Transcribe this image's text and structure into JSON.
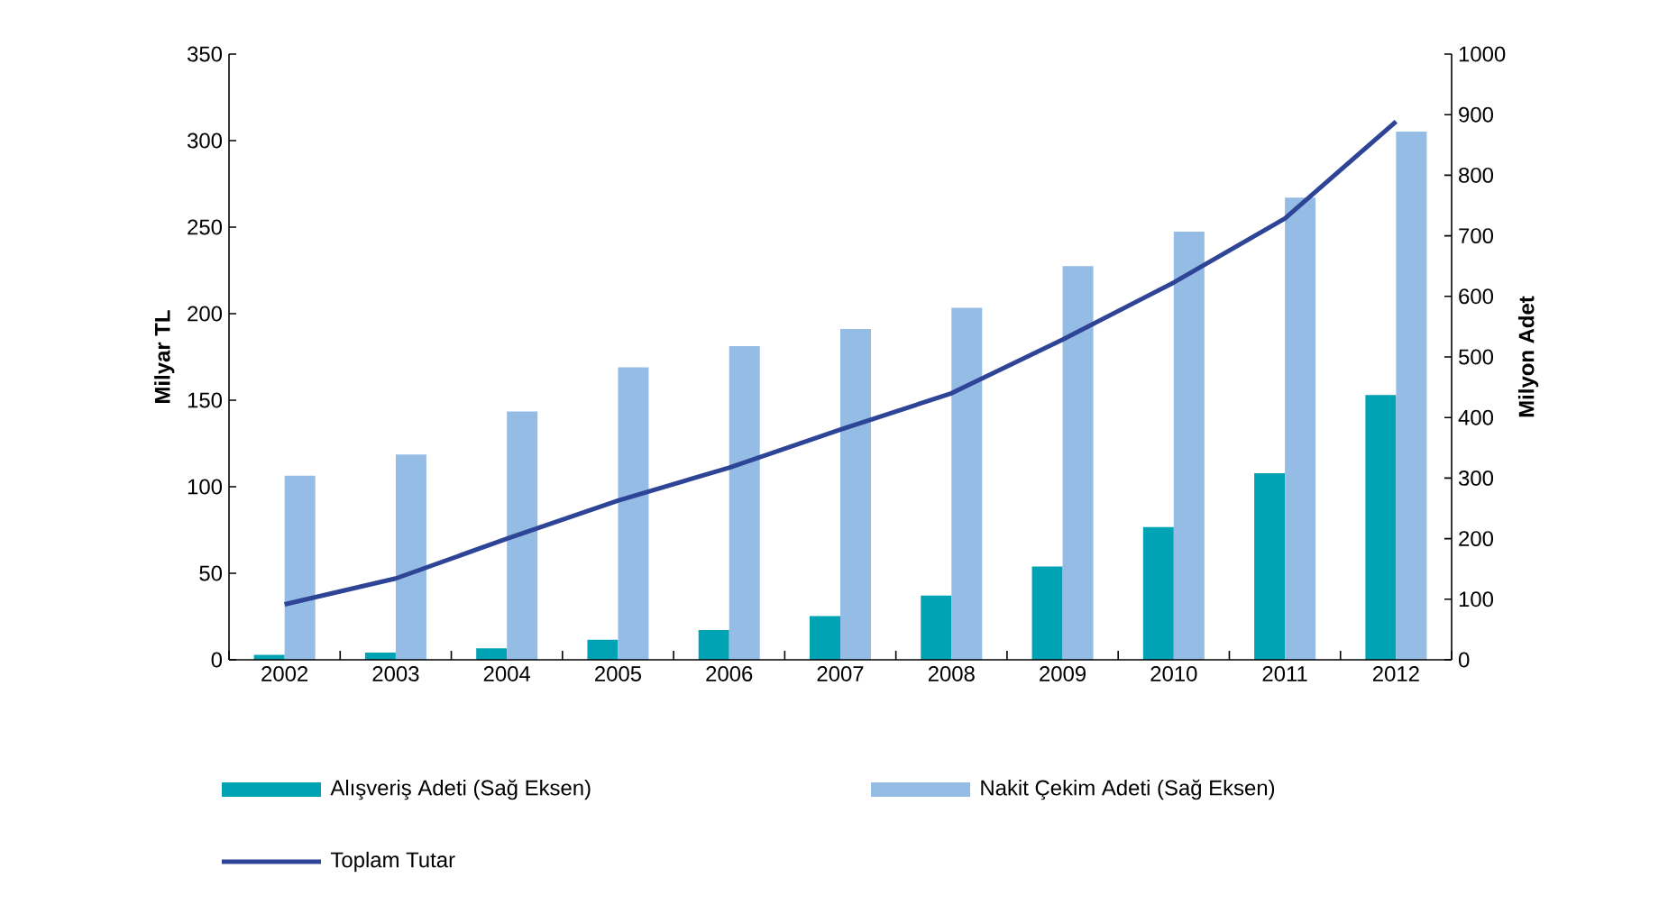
{
  "chart_data": {
    "type": "bar",
    "categories": [
      "2002",
      "2003",
      "2004",
      "2005",
      "2006",
      "2007",
      "2008",
      "2009",
      "2010",
      "2011",
      "2012"
    ],
    "series": [
      {
        "name": "Alışveriş Adeti (Sağ Eksen)",
        "color": "#00a3b4",
        "axis": "y2",
        "values": [
          8,
          12,
          19,
          33,
          49,
          72,
          106,
          154,
          219,
          308,
          437
        ]
      },
      {
        "name": "Nakit Çekim Adeti (Sağ Eksen)",
        "color": "#95bce5",
        "axis": "y2",
        "values": [
          304,
          339,
          410,
          483,
          518,
          546,
          581,
          650,
          707,
          763,
          872
        ]
      },
      {
        "name": "Toplam Tutar",
        "color": "#2e4496",
        "type": "line",
        "axis": "y",
        "values": [
          32,
          47,
          70,
          92,
          111,
          133,
          154,
          185,
          218,
          255,
          311
        ]
      }
    ],
    "ylabel": "Milyar TL",
    "y2label": "Milyon Adet",
    "ylim": [
      0,
      350
    ],
    "yticks": [
      0,
      50,
      100,
      150,
      200,
      250,
      300,
      350
    ],
    "y2lim": [
      0,
      1000
    ],
    "y2ticks": [
      0,
      100,
      200,
      300,
      400,
      500,
      600,
      700,
      800,
      900,
      1000
    ],
    "legend": "bottom"
  }
}
